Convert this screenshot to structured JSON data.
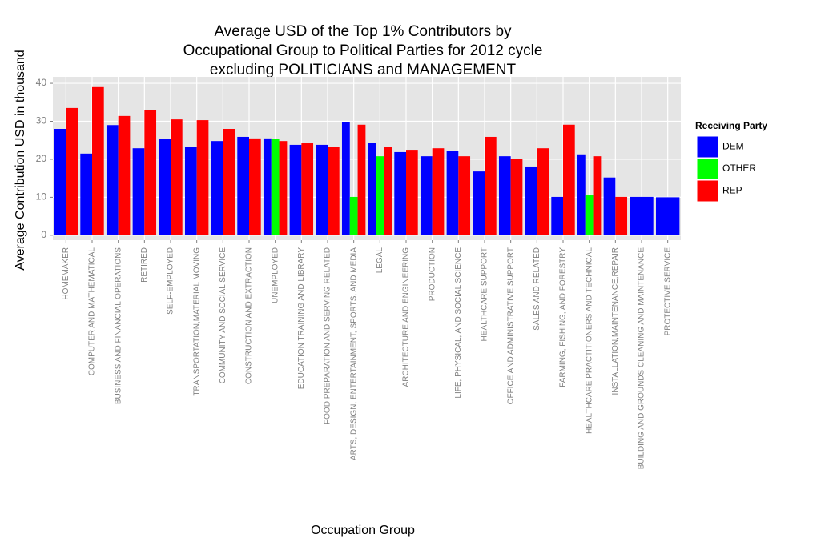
{
  "chart_data": {
    "type": "bar",
    "title": [
      "Average USD of the Top 1% Contributors by",
      "Occupational Group to Political Parties for 2012 cycle",
      "excluding POLITICIANS and MANAGEMENT"
    ],
    "x_label": "Occupation Group",
    "y_label": "Average Contribution USD in thousand",
    "legend_title": "Receiving Party",
    "categories": [
      "HOMEMAKER",
      "COMPUTER AND MATHEMATICAL",
      "BUSINESS AND FINANCIAL OPERATIONS",
      "RETIRED",
      "SELF-EMPLOYED",
      "TRANSPORTATION,MATERIAL MOVING",
      "COMMUNITY AND SOCIAL SERVICE",
      "CONSTRUCTION AND EXTRACTION",
      "UNEMPLOYED",
      "EDUCATION TRAINING AND LIBRARY",
      "FOOD PREPARATION AND SERVING RELATED",
      "ARTS, DESIGN, ENTERTAINMENT, SPORTS, AND MEDIA",
      "LEGAL",
      "ARCHITECTURE AND ENGINEERING",
      "PRODUCTION",
      "LIFE, PHYSICAL, AND SOCIAL SCIENCE",
      "HEALTHCARE SUPPORT",
      "OFFICE AND ADMINISTRATIVE SUPPORT",
      "SALES AND RELATED",
      "FARMING, FISHING, AND FORESTRY",
      "HEALTHCARE PRACTITIONERS AND TECHNICAL",
      "INSTALLATION,MAINTENANCE,REPAIR",
      "BUILDING AND GROUNDS CLEANING AND MAINTENANCE",
      "PROTECTIVE SERVICE"
    ],
    "series": [
      {
        "name": "DEM",
        "color": "#0000ff",
        "values": [
          28.0,
          21.5,
          29.0,
          22.9,
          25.3,
          23.2,
          24.8,
          25.9,
          25.5,
          23.8,
          23.8,
          29.7,
          24.4,
          21.9,
          20.8,
          22.1,
          16.8,
          20.8,
          18.1,
          10.1,
          21.3,
          15.2,
          10.1,
          10.0
        ]
      },
      {
        "name": "OTHER",
        "color": "#00ff00",
        "values": [
          null,
          null,
          null,
          null,
          null,
          null,
          null,
          null,
          25.3,
          null,
          null,
          10.1,
          20.8,
          null,
          null,
          null,
          null,
          null,
          null,
          null,
          10.5,
          null,
          null,
          null
        ]
      },
      {
        "name": "REP",
        "color": "#ff0000",
        "values": [
          33.5,
          39.0,
          31.4,
          33.0,
          30.5,
          30.3,
          28.0,
          25.5,
          24.8,
          24.2,
          23.2,
          29.1,
          23.2,
          22.5,
          22.9,
          20.8,
          25.9,
          20.2,
          22.9,
          29.1,
          20.8,
          10.1,
          null,
          null
        ]
      }
    ],
    "ylim": [
      -1.3,
      41.7
    ],
    "yticks": [
      0,
      10,
      20,
      30,
      40
    ],
    "grid": true
  }
}
